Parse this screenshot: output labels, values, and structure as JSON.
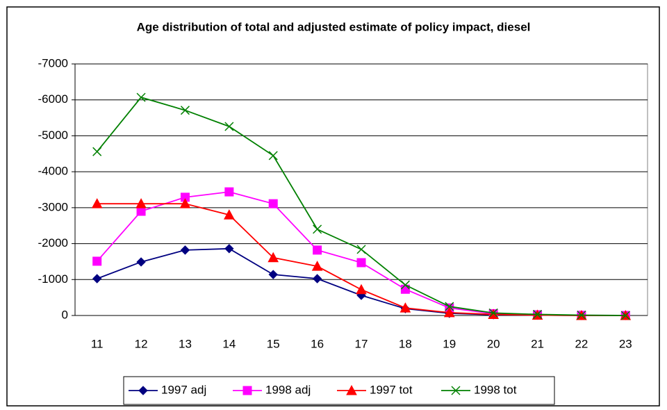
{
  "chart_data": {
    "type": "line",
    "title": "Age distribution of total and adjusted estimate of policy impact, diesel",
    "categories": [
      "11",
      "12",
      "13",
      "14",
      "15",
      "16",
      "17",
      "18",
      "19",
      "20",
      "21",
      "22",
      "23"
    ],
    "series": [
      {
        "name": "1997 adj",
        "color": "#000080",
        "marker": "diamond",
        "values": [
          -1025,
          -1490,
          -1820,
          -1860,
          -1140,
          -1025,
          -560,
          -190,
          -60,
          -20,
          -10,
          0,
          0
        ]
      },
      {
        "name": "1998 adj",
        "color": "#ff00ff",
        "marker": "square",
        "values": [
          -1510,
          -2900,
          -3290,
          -3440,
          -3110,
          -1820,
          -1470,
          -730,
          -210,
          -50,
          -20,
          -5,
          0
        ]
      },
      {
        "name": "1997 tot",
        "color": "#ff0000",
        "marker": "triangle",
        "values": [
          -3110,
          -3110,
          -3110,
          -2800,
          -1610,
          -1370,
          -720,
          -210,
          -80,
          -30,
          -10,
          0,
          0
        ]
      },
      {
        "name": "1998 tot",
        "color": "#008000",
        "marker": "x",
        "values": [
          -4560,
          -6070,
          -5710,
          -5260,
          -4450,
          -2400,
          -1840,
          -850,
          -250,
          -70,
          -30,
          -10,
          0
        ]
      }
    ],
    "ylim": [
      0,
      -7000
    ],
    "yticks": [
      0,
      -1000,
      -2000,
      -3000,
      -4000,
      -5000,
      -6000,
      -7000
    ],
    "grid": true,
    "legend": "bottom"
  }
}
